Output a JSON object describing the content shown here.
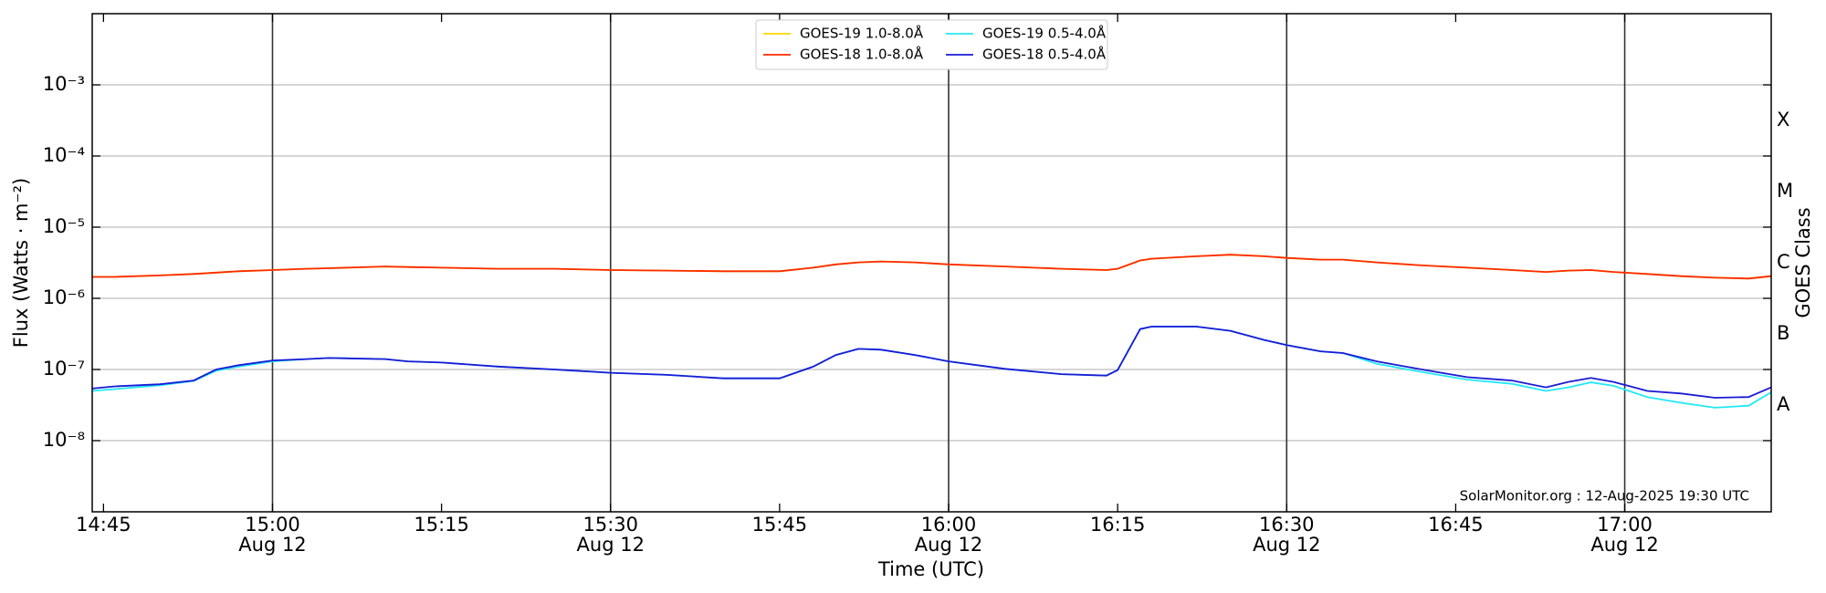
{
  "chart_data": {
    "type": "line",
    "xlabel": "Time (UTC)",
    "ylabel": "Flux (Watts · m⁻²)",
    "y2label": "GOES Class",
    "annotation": "SolarMonitor.org : 12-Aug-2025 19:30 UTC",
    "log_y": true,
    "grid": true,
    "legend": "upper center",
    "x": [
      "14:44",
      "14:46",
      "14:50",
      "14:53",
      "14:55",
      "14:57",
      "15:00",
      "15:03",
      "15:05",
      "15:10",
      "15:12",
      "15:15",
      "15:20",
      "15:25",
      "15:30",
      "15:35",
      "15:40",
      "15:45",
      "15:48",
      "15:50",
      "15:52",
      "15:54",
      "15:57",
      "16:00",
      "16:05",
      "16:10",
      "16:14",
      "16:15",
      "16:17",
      "16:18",
      "16:22",
      "16:25",
      "16:28",
      "16:30",
      "16:33",
      "16:35",
      "16:38",
      "16:42",
      "16:46",
      "16:50",
      "16:53",
      "16:55",
      "16:57",
      "16:59",
      "17:02",
      "17:05",
      "17:08",
      "17:11",
      "17:13"
    ],
    "xlim": [
      "14:44",
      "17:13"
    ],
    "xticks": [
      "14:45",
      "15:00",
      "15:15",
      "15:30",
      "15:45",
      "16:00",
      "16:15",
      "16:30",
      "16:45",
      "17:00"
    ],
    "xtick_dates": [
      null,
      "Aug 12",
      null,
      "Aug 12",
      null,
      "Aug 12",
      null,
      "Aug 12",
      null,
      "Aug 12"
    ],
    "ylim": [
      1e-09,
      0.01
    ],
    "yticks": [
      {
        "value": 0.001,
        "label": "10⁻³"
      },
      {
        "value": 0.0001,
        "label": "10⁻⁴"
      },
      {
        "value": 1e-05,
        "label": "10⁻⁵"
      },
      {
        "value": 1e-06,
        "label": "10⁻⁶"
      },
      {
        "value": 1e-07,
        "label": "10⁻⁷"
      },
      {
        "value": 1e-08,
        "label": "10⁻⁸"
      }
    ],
    "y2lim": [
      1e-09,
      0.01
    ],
    "y2ticks": [
      {
        "value": 3.16e-08,
        "label": "A"
      },
      {
        "value": 3.16e-07,
        "label": "B"
      },
      {
        "value": 3.16e-06,
        "label": "C"
      },
      {
        "value": 3.16e-05,
        "label": "M"
      },
      {
        "value": 0.000316,
        "label": "X"
      }
    ],
    "series": [
      {
        "name": "GOES-19 1.0-8.0Å",
        "color": "#ffd700",
        "values": [
          2e-06,
          2e-06,
          2.1e-06,
          2.2e-06,
          2.3e-06,
          2.4e-06,
          2.5e-06,
          2.6e-06,
          2.65e-06,
          2.8e-06,
          2.75e-06,
          2.7e-06,
          2.6e-06,
          2.6e-06,
          2.5e-06,
          2.45e-06,
          2.4e-06,
          2.4e-06,
          2.7e-06,
          3e-06,
          3.2e-06,
          3.3e-06,
          3.2e-06,
          3e-06,
          2.8e-06,
          2.6e-06,
          2.5e-06,
          2.6e-06,
          3.4e-06,
          3.6e-06,
          3.9e-06,
          4.1e-06,
          3.9e-06,
          3.7e-06,
          3.5e-06,
          3.5e-06,
          3.2e-06,
          2.9e-06,
          2.7e-06,
          2.5e-06,
          2.35e-06,
          2.45e-06,
          2.5e-06,
          2.35e-06,
          2.2e-06,
          2.05e-06,
          1.95e-06,
          1.9e-06,
          2.05e-06
        ]
      },
      {
        "name": "GOES-18 1.0-8.0Å",
        "color": "#ff2a00",
        "values": [
          2e-06,
          2e-06,
          2.1e-06,
          2.2e-06,
          2.3e-06,
          2.4e-06,
          2.5e-06,
          2.6e-06,
          2.65e-06,
          2.8e-06,
          2.75e-06,
          2.7e-06,
          2.6e-06,
          2.6e-06,
          2.5e-06,
          2.45e-06,
          2.4e-06,
          2.4e-06,
          2.7e-06,
          3e-06,
          3.2e-06,
          3.3e-06,
          3.2e-06,
          3e-06,
          2.8e-06,
          2.6e-06,
          2.5e-06,
          2.6e-06,
          3.4e-06,
          3.6e-06,
          3.9e-06,
          4.1e-06,
          3.9e-06,
          3.7e-06,
          3.5e-06,
          3.5e-06,
          3.2e-06,
          2.9e-06,
          2.7e-06,
          2.5e-06,
          2.35e-06,
          2.45e-06,
          2.5e-06,
          2.35e-06,
          2.2e-06,
          2.05e-06,
          1.95e-06,
          1.9e-06,
          2.05e-06
        ]
      },
      {
        "name": "GOES-19 0.5-4.0Å",
        "color": "#22e8f5",
        "values": [
          5e-08,
          5.3e-08,
          6e-08,
          6.9e-08,
          9.6e-08,
          1.1e-07,
          1.3e-07,
          1.4e-07,
          1.45e-07,
          1.4e-07,
          1.3e-07,
          1.25e-07,
          1.1e-07,
          1e-07,
          9e-08,
          8.4e-08,
          7.5e-08,
          7.5e-08,
          1.1e-07,
          1.6e-07,
          1.95e-07,
          1.9e-07,
          1.6e-07,
          1.3e-07,
          1.02e-07,
          8.6e-08,
          8.2e-08,
          9.8e-08,
          3.7e-07,
          4e-07,
          4e-07,
          3.5e-07,
          2.6e-07,
          2.2e-07,
          1.8e-07,
          1.7e-07,
          1.2e-07,
          9.2e-08,
          7.2e-08,
          6.3e-08,
          5e-08,
          5.6e-08,
          6.6e-08,
          5.9e-08,
          4.1e-08,
          3.4e-08,
          2.9e-08,
          3.1e-08,
          4.8e-08
        ]
      },
      {
        "name": "GOES-18 0.5-4.0Å",
        "color": "#1a1ad6",
        "values": [
          5.4e-08,
          5.8e-08,
          6.2e-08,
          7e-08,
          1e-07,
          1.15e-07,
          1.34e-07,
          1.4e-07,
          1.45e-07,
          1.4e-07,
          1.3e-07,
          1.25e-07,
          1.1e-07,
          1e-07,
          9e-08,
          8.4e-08,
          7.5e-08,
          7.5e-08,
          1.1e-07,
          1.6e-07,
          1.95e-07,
          1.9e-07,
          1.6e-07,
          1.3e-07,
          1.02e-07,
          8.6e-08,
          8.2e-08,
          9.8e-08,
          3.7e-07,
          4e-07,
          4e-07,
          3.5e-07,
          2.6e-07,
          2.2e-07,
          1.8e-07,
          1.7e-07,
          1.3e-07,
          1e-07,
          7.8e-08,
          7e-08,
          5.6e-08,
          6.7e-08,
          7.6e-08,
          6.7e-08,
          5e-08,
          4.6e-08,
          4e-08,
          4.1e-08,
          5.6e-08
        ]
      }
    ]
  }
}
